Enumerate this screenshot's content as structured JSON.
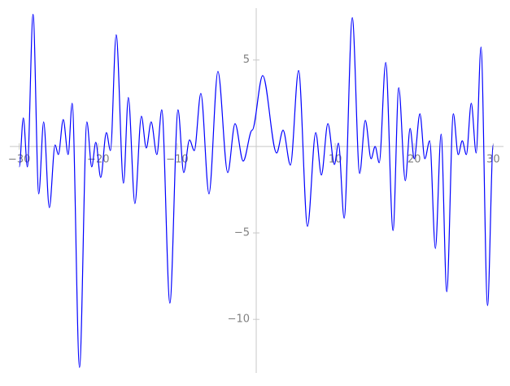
{
  "chart_data": {
    "type": "line",
    "color": "#0000ff",
    "x": [
      -30.0,
      -29.48,
      -28.97,
      -28.25,
      -27.53,
      -26.91,
      -26.19,
      -25.46,
      -25.05,
      -24.43,
      -23.81,
      -23.3,
      -22.37,
      -21.44,
      -20.82,
      -20.31,
      -19.69,
      -18.97,
      -18.45,
      -17.73,
      -16.8,
      -16.19,
      -15.36,
      -14.54,
      -13.92,
      -13.3,
      -12.58,
      -11.96,
      -10.93,
      -9.9,
      -9.18,
      -8.45,
      -7.84,
      -7.01,
      -5.98,
      -4.85,
      -3.61,
      -2.68,
      -1.65,
      -0.52,
      0.82,
      2.58,
      3.4,
      4.33,
      5.36,
      6.49,
      7.53,
      8.25,
      9.07,
      9.9,
      10.41,
      11.13,
      12.16,
      13.09,
      13.81,
      14.54,
      15.05,
      15.57,
      16.39,
      17.32,
      18.04,
      18.87,
      19.48,
      20.0,
      20.72,
      21.34,
      21.96,
      22.68,
      23.4,
      24.12,
      24.95,
      25.57,
      26.08,
      26.6,
      27.22,
      27.84,
      28.45,
      29.28,
      30.0
    ],
    "values": [
      -1.18,
      1.65,
      -1.18,
      7.64,
      -2.74,
      1.42,
      -3.54,
      0.09,
      -0.47,
      1.56,
      -0.47,
      2.5,
      -12.78,
      1.42,
      -1.18,
      0.24,
      -1.79,
      0.8,
      -0.24,
      6.46,
      -2.12,
      2.83,
      -3.3,
      1.75,
      -0.09,
      1.42,
      -0.47,
      2.12,
      -9.06,
      2.12,
      -1.51,
      0.38,
      -0.24,
      3.07,
      -2.74,
      4.34,
      -1.51,
      1.32,
      -0.85,
      0.94,
      4.1,
      -0.38,
      0.94,
      -1.08,
      4.39,
      -4.62,
      0.8,
      -1.65,
      1.32,
      -1.04,
      0.19,
      -4.15,
      7.45,
      -1.56,
      1.51,
      -0.71,
      0,
      -0.94,
      4.86,
      -4.86,
      3.4,
      -1.98,
      1.04,
      -0.71,
      1.89,
      -0.71,
      0.33,
      -5.9,
      0.71,
      -8.4,
      1.89,
      -0.47,
      0.33,
      -0.47,
      2.5,
      -0.38,
      5.75,
      -9.2,
      0.09
    ],
    "xlim": [
      -31.2,
      31.3
    ],
    "ylim": [
      -13.1,
      8.0
    ],
    "xticks": [
      {
        "value": -30,
        "label": "−30"
      },
      {
        "value": -20,
        "label": "−20"
      },
      {
        "value": -10,
        "label": "−10"
      },
      10,
      20,
      30
    ],
    "yticks": [
      5,
      {
        "value": -5,
        "label": "−5"
      },
      {
        "value": -10,
        "label": "−10"
      }
    ],
    "grid": false
  }
}
